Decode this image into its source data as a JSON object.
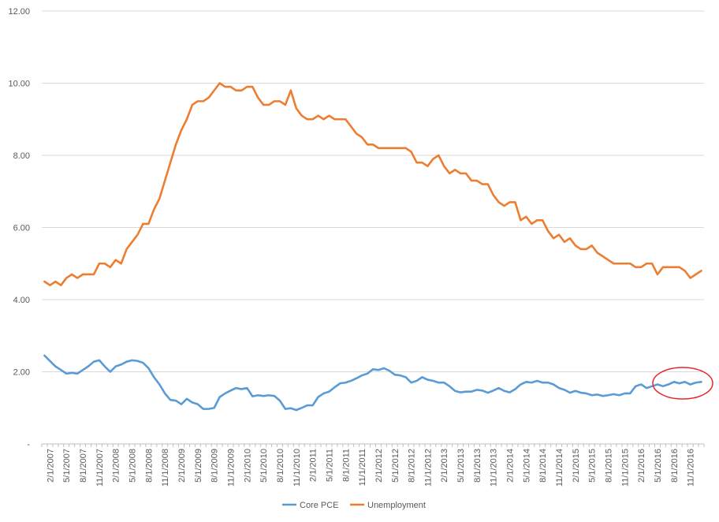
{
  "chart_data": {
    "type": "line",
    "title": "",
    "xlabel": "",
    "ylabel": "",
    "ylim": [
      0,
      12
    ],
    "y_ticks": [
      "-",
      "2.00",
      "4.00",
      "6.00",
      "8.00",
      "10.00",
      "12.00"
    ],
    "grid": "horizontal",
    "legend_position": "bottom",
    "x_tick_labels": [
      "2/1/2007",
      "5/1/2007",
      "8/1/2007",
      "11/1/2007",
      "2/1/2008",
      "5/1/2008",
      "8/1/2008",
      "11/1/2008",
      "2/1/2009",
      "5/1/2009",
      "8/1/2009",
      "11/1/2009",
      "2/1/2010",
      "5/1/2010",
      "8/1/2010",
      "11/1/2010",
      "2/1/2011",
      "5/1/2011",
      "8/1/2011",
      "11/1/2011",
      "2/1/2012",
      "5/1/2012",
      "8/1/2012",
      "11/1/2012",
      "2/1/2013",
      "5/1/2013",
      "8/1/2013",
      "11/1/2013",
      "2/1/2014",
      "5/1/2014",
      "8/1/2014",
      "11/1/2014",
      "2/1/2015",
      "5/1/2015",
      "8/1/2015",
      "11/1/2015",
      "2/1/2016",
      "5/1/2016",
      "8/1/2016",
      "11/1/2016"
    ],
    "series": [
      {
        "name": "Core PCE",
        "color": "#5B9BD5",
        "values": [
          2.45,
          2.3,
          2.15,
          2.05,
          1.95,
          1.97,
          1.95,
          2.05,
          2.15,
          2.28,
          2.32,
          2.15,
          2.0,
          2.15,
          2.2,
          2.28,
          2.32,
          2.3,
          2.25,
          2.1,
          1.85,
          1.65,
          1.4,
          1.22,
          1.2,
          1.1,
          1.25,
          1.15,
          1.1,
          0.97,
          0.97,
          1.0,
          1.3,
          1.4,
          1.48,
          1.55,
          1.52,
          1.55,
          1.32,
          1.35,
          1.33,
          1.35,
          1.33,
          1.2,
          0.97,
          0.99,
          0.94,
          1.0,
          1.07,
          1.07,
          1.3,
          1.4,
          1.45,
          1.57,
          1.68,
          1.7,
          1.75,
          1.82,
          1.9,
          1.95,
          2.07,
          2.05,
          2.1,
          2.03,
          1.92,
          1.9,
          1.85,
          1.7,
          1.75,
          1.85,
          1.78,
          1.75,
          1.7,
          1.7,
          1.6,
          1.47,
          1.43,
          1.45,
          1.45,
          1.5,
          1.48,
          1.42,
          1.48,
          1.55,
          1.47,
          1.43,
          1.52,
          1.65,
          1.72,
          1.7,
          1.75,
          1.7,
          1.7,
          1.65,
          1.55,
          1.5,
          1.42,
          1.47,
          1.42,
          1.4,
          1.35,
          1.37,
          1.33,
          1.35,
          1.38,
          1.35,
          1.4,
          1.4,
          1.6,
          1.65,
          1.55,
          1.6,
          1.65,
          1.6,
          1.65,
          1.72,
          1.68,
          1.72,
          1.65,
          1.7,
          1.72
        ]
      },
      {
        "name": "Unemployment",
        "color": "#ED7D31",
        "values": [
          4.5,
          4.4,
          4.5,
          4.4,
          4.6,
          4.7,
          4.6,
          4.7,
          4.7,
          4.7,
          5.0,
          5.0,
          4.9,
          5.1,
          5.0,
          5.4,
          5.6,
          5.8,
          6.1,
          6.1,
          6.5,
          6.8,
          7.3,
          7.8,
          8.3,
          8.7,
          9.0,
          9.4,
          9.5,
          9.5,
          9.6,
          9.8,
          10.0,
          9.9,
          9.9,
          9.8,
          9.8,
          9.9,
          9.9,
          9.6,
          9.4,
          9.4,
          9.5,
          9.5,
          9.4,
          9.8,
          9.3,
          9.1,
          9.0,
          9.0,
          9.1,
          9.0,
          9.1,
          9.0,
          9.0,
          9.0,
          8.8,
          8.6,
          8.5,
          8.3,
          8.3,
          8.2,
          8.2,
          8.2,
          8.2,
          8.2,
          8.2,
          8.1,
          7.8,
          7.8,
          7.7,
          7.9,
          8.0,
          7.7,
          7.5,
          7.6,
          7.5,
          7.5,
          7.3,
          7.3,
          7.2,
          7.2,
          6.9,
          6.7,
          6.6,
          6.7,
          6.7,
          6.2,
          6.3,
          6.1,
          6.2,
          6.2,
          5.9,
          5.7,
          5.8,
          5.6,
          5.7,
          5.5,
          5.4,
          5.4,
          5.5,
          5.3,
          5.2,
          5.1,
          5.0,
          5.0,
          5.0,
          5.0,
          4.9,
          4.9,
          5.0,
          5.0,
          4.7,
          4.9,
          4.9,
          4.9,
          4.9,
          4.8,
          4.6,
          4.7,
          4.8
        ]
      }
    ],
    "annotation": {
      "shape": "ellipse",
      "color": "#E8262A"
    }
  }
}
